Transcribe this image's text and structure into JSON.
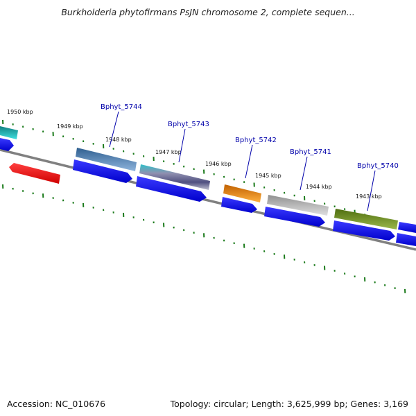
{
  "title": "Burkholderia phytofirmans PsJN chromosome 2, complete sequen...",
  "footer": {
    "accession": "Accession: NC_010676",
    "summary": "Topology: circular; Length: 3,625,999 bp; Genes: 3,169"
  },
  "kbp_labels": [
    "1950 kbp",
    "1949 kbp",
    "1948 kbp",
    "1947 kbp",
    "1946 kbp",
    "1945 kbp",
    "1944 kbp",
    "1943 kbp"
  ],
  "gene_labels": [
    "Bphyt_5744",
    "Bphyt_5743",
    "Bphyt_5742",
    "Bphyt_5741",
    "Bphyt_5740"
  ],
  "colors": {
    "cds": "#0000ee",
    "backbone": "#7a7a7a",
    "ticks": "#1a7a1a",
    "reverse_gene": "#ee0000",
    "gene_label": "#0000aa",
    "gene_5744": "#4a7fb5",
    "gene_5743": "#30b8c0",
    "gene_5742": "#f08a10",
    "gene_5741": "#b5b5b5",
    "gene_5740": "#6b8e23",
    "gene_edge": "#30c8c8"
  }
}
